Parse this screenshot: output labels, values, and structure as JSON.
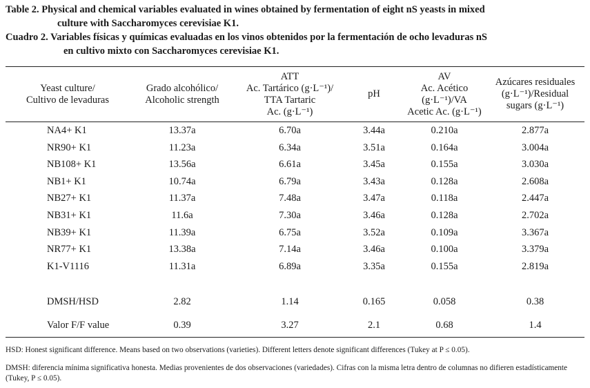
{
  "caption": {
    "en_line1": "Table 2. Physical and chemical variables evaluated in wines obtained by fermentation of eight nS yeasts in mixed",
    "en_line2": "culture with Saccharomyces cerevisiae K1.",
    "es_line1": "Cuadro 2. Variables físicas y químicas evaluadas en los vinos obtenidos por la fermentación de ocho levaduras nS",
    "es_line2": "en cultivo mixto con Saccharomyces cerevisiae K1."
  },
  "table": {
    "headers": {
      "yeast": [
        "Yeast culture/",
        "Cultivo de levaduras"
      ],
      "alcohol": [
        "Grado alcohólico/",
        "Alcoholic strength"
      ],
      "att": [
        "ATT",
        "Ac. Tartárico (g·L⁻¹)/",
        "TTA Tartaric",
        "Ac. (g·L⁻¹)"
      ],
      "ph": [
        "pH"
      ],
      "av": [
        "AV",
        "Ac. Acético",
        "(g·L⁻¹)/VA",
        "Acetic Ac. (g·L⁻¹)"
      ],
      "sugar": [
        "Azúcares residuales",
        "(g·L⁻¹)/Residual",
        "sugars (g·L⁻¹)"
      ]
    },
    "rows": [
      {
        "name": "NA4+ K1",
        "alcohol": "13.37a",
        "att": "6.70a",
        "ph": "3.44a",
        "av": "0.210a",
        "sugar": "2.877a"
      },
      {
        "name": "NR90+ K1",
        "alcohol": "11.23a",
        "att": "6.34a",
        "ph": "3.51a",
        "av": "0.164a",
        "sugar": "3.004a"
      },
      {
        "name": "NB108+ K1",
        "alcohol": "13.56a",
        "att": "6.61a",
        "ph": "3.45a",
        "av": "0.155a",
        "sugar": "3.030a"
      },
      {
        "name": "NB1+ K1",
        "alcohol": "10.74a",
        "att": "6.79a",
        "ph": "3.43a",
        "av": "0.128a",
        "sugar": "2.608a"
      },
      {
        "name": "NB27+ K1",
        "alcohol": "11.37a",
        "att": "7.48a",
        "ph": "3.47a",
        "av": "0.118a",
        "sugar": "2.447a"
      },
      {
        "name": "NB31+ K1",
        "alcohol": "11.6a",
        "att": "7.30a",
        "ph": "3.46a",
        "av": "0.128a",
        "sugar": "2.702a"
      },
      {
        "name": "NB39+ K1",
        "alcohol": "11.39a",
        "att": "6.75a",
        "ph": "3.52a",
        "av": "0.109a",
        "sugar": "3.367a"
      },
      {
        "name": "NR77+ K1",
        "alcohol": "13.38a",
        "att": "7.14a",
        "ph": "3.46a",
        "av": "0.100a",
        "sugar": "3.379a"
      },
      {
        "name": "K1-V1116",
        "alcohol": "11.31a",
        "att": "6.89a",
        "ph": "3.35a",
        "av": "0.155a",
        "sugar": "2.819a"
      }
    ],
    "stats": [
      {
        "name": "DMSH/HSD",
        "alcohol": "2.82",
        "att": "1.14",
        "ph": "0.165",
        "av": "0.058",
        "sugar": "0.38"
      },
      {
        "name": "Valor F/F value",
        "alcohol": "0.39",
        "att": "3.27",
        "ph": "2.1",
        "av": "0.68",
        "sugar": "1.4"
      }
    ]
  },
  "notes": {
    "hsd": "HSD: Honest significant difference. Means based on two observations (varieties). Different letters denote significant differences (Tukey at P ≤ 0.05).",
    "dmsh": "DMSH: diferencia mínima significativa honesta. Medias provenientes de dos observaciones (variedades). Cifras con la misma letra dentro de columnas no difieren estadísticamente (Tukey, P ≤ 0.05)."
  }
}
